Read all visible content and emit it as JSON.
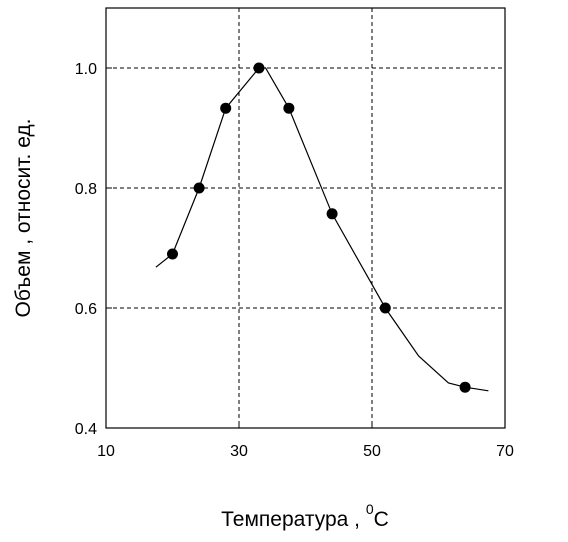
{
  "chart_data": {
    "type": "line",
    "title": "",
    "xlabel": "Температура  ,  ",
    "xlabel_sup": "0",
    "xlabel_unit": "C",
    "ylabel": "Объем  ,  относит. ед.",
    "xlim": [
      10,
      70
    ],
    "ylim": [
      0.4,
      1.1
    ],
    "xticks": [
      10,
      30,
      50,
      70
    ],
    "yticks": [
      0.4,
      0.6,
      0.8,
      1.0
    ],
    "ytick_labels": [
      "0.4",
      "0.6",
      "0.8",
      "1.0"
    ],
    "grid": true,
    "grid_x": [
      30,
      50
    ],
    "grid_y": [
      0.6,
      0.8,
      1.0
    ],
    "series": [
      {
        "line": [
          [
            17.5,
            0.668
          ],
          [
            20,
            0.69
          ],
          [
            24,
            0.8
          ],
          [
            28,
            0.933
          ],
          [
            33,
            1.0
          ],
          [
            34,
            1.0
          ],
          [
            37.5,
            0.933
          ],
          [
            44,
            0.757
          ],
          [
            52,
            0.6
          ],
          [
            57,
            0.52
          ],
          [
            61.5,
            0.475
          ],
          [
            64,
            0.468
          ],
          [
            67.5,
            0.462
          ]
        ],
        "markers": [
          [
            20,
            0.69
          ],
          [
            24,
            0.8
          ],
          [
            28,
            0.933
          ],
          [
            33,
            1.0
          ],
          [
            37.5,
            0.933
          ],
          [
            44,
            0.757
          ],
          [
            52,
            0.6
          ],
          [
            64,
            0.468
          ]
        ]
      }
    ],
    "colors": {
      "line": "#000000",
      "marker": "#000000",
      "grid": "#000000",
      "axes": "#000000"
    }
  }
}
